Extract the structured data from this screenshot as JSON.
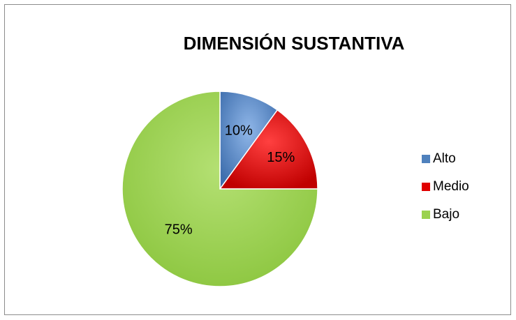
{
  "chart_data": {
    "type": "pie",
    "title": "DIMENSIÓN SUSTANTIVA",
    "categories": [
      "Alto",
      "Medio",
      "Bajo"
    ],
    "values": [
      10,
      15,
      75
    ],
    "labels": [
      "10%",
      "15%",
      "75%"
    ],
    "colors": [
      "#4f81bd",
      "#e00000",
      "#9bd24f"
    ],
    "legend_position": "right"
  }
}
